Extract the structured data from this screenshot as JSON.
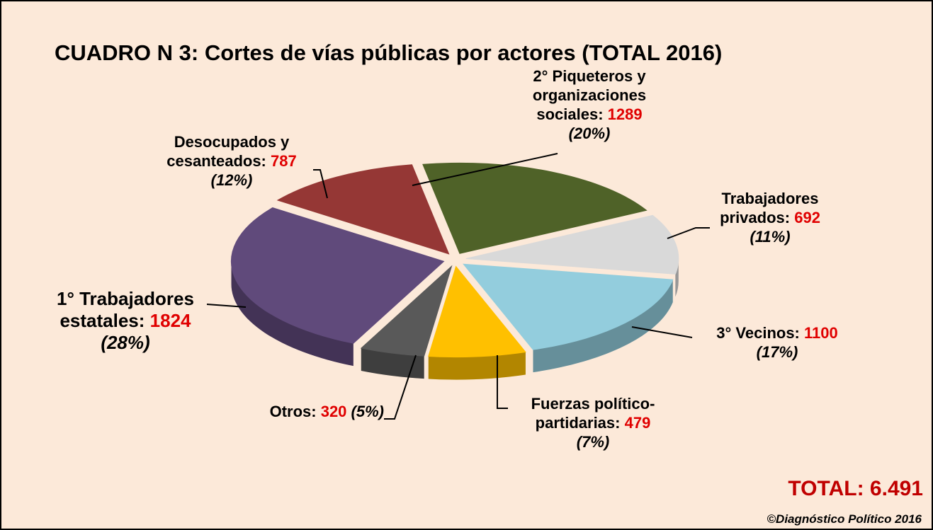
{
  "chart_data": {
    "type": "pie",
    "title": "CUADRO N 3: Cortes de vías públicas por actores (TOTAL 2016)",
    "categories": [
      "2° Piqueteros y organizaciones sociales:",
      "Trabajadores privados:",
      "3° Vecinos:",
      "Fuerzas político-partidarias:",
      "Otros:",
      "1° Trabajadores estatales:",
      "Desocupados y cesanteados:"
    ],
    "values": [
      1289,
      692,
      1100,
      479,
      320,
      1824,
      787
    ],
    "percent_labels": [
      "(20%)",
      "(11%)",
      "(17%)",
      "(7%)",
      "(5%)",
      "(28%)",
      "(12%)"
    ],
    "colors": [
      "#4f6228",
      "#d9d9d9",
      "#93cddd",
      "#ffc000",
      "#595959",
      "#604a7b",
      "#953735"
    ],
    "total_label": "TOTAL: 6.491",
    "source": "©Diagnóstico Político 2016"
  }
}
